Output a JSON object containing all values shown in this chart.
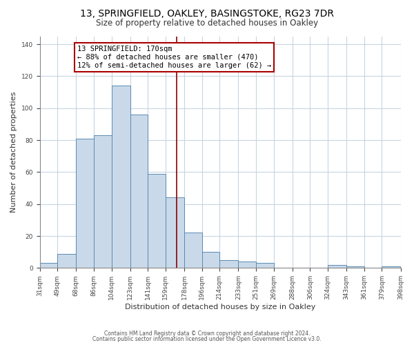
{
  "title": "13, SPRINGFIELD, OAKLEY, BASINGSTOKE, RG23 7DR",
  "subtitle": "Size of property relative to detached houses in Oakley",
  "xlabel": "Distribution of detached houses by size in Oakley",
  "ylabel": "Number of detached properties",
  "bar_color": "#c9d9ea",
  "bar_edge_color": "#5a8ab0",
  "bins": [
    31,
    49,
    68,
    86,
    104,
    123,
    141,
    159,
    178,
    196,
    214,
    233,
    251,
    269,
    288,
    306,
    324,
    343,
    361,
    379,
    398
  ],
  "counts": [
    3,
    9,
    81,
    83,
    114,
    96,
    59,
    44,
    22,
    10,
    5,
    4,
    3,
    0,
    0,
    0,
    2,
    1,
    0,
    1
  ],
  "property_size": 170,
  "vline_color": "#8b0000",
  "annotation_line1": "13 SPRINGFIELD: 170sqm",
  "annotation_line2": "← 88% of detached houses are smaller (470)",
  "annotation_line3": "12% of semi-detached houses are larger (62) →",
  "annotation_box_color": "#ffffff",
  "annotation_box_edge": "#aa0000",
  "ylim": [
    0,
    145
  ],
  "yticks": [
    0,
    20,
    40,
    60,
    80,
    100,
    120,
    140
  ],
  "tick_labels": [
    "31sqm",
    "49sqm",
    "68sqm",
    "86sqm",
    "104sqm",
    "123sqm",
    "141sqm",
    "159sqm",
    "178sqm",
    "196sqm",
    "214sqm",
    "233sqm",
    "251sqm",
    "269sqm",
    "288sqm",
    "306sqm",
    "324sqm",
    "343sqm",
    "361sqm",
    "379sqm",
    "398sqm"
  ],
  "footnote1": "Contains HM Land Registry data © Crown copyright and database right 2024.",
  "footnote2": "Contains public sector information licensed under the Open Government Licence v3.0.",
  "background_color": "#ffffff",
  "grid_color": "#c8d4e0"
}
